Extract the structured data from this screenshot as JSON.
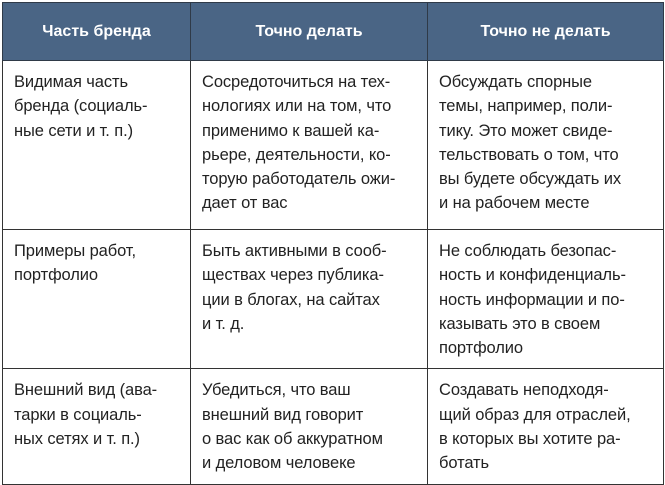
{
  "table": {
    "headers": [
      "Часть бренда",
      "Точно делать",
      "Точно не делать"
    ],
    "rows": [
      [
        [
          "Видимая часть",
          "бренда (социаль-",
          "ные сети и т. п.)"
        ],
        [
          "Сосредоточиться на тех-",
          "нологиях или на том, что",
          "применимо к вашей ка-",
          "рьере, деятельности, ко-",
          "торую работодатель ожи-",
          "дает от вас"
        ],
        [
          "Обсуждать спорные",
          "темы, например, поли-",
          "тику. Это может свиде-",
          "тельствовать о том, что",
          "вы будете обсуждать их",
          "и на рабочем месте"
        ]
      ],
      [
        [
          "Примеры работ,",
          "портфолио"
        ],
        [
          "Быть активными в сооб-",
          "ществах через публика-",
          "ции в блогах, на сайтах",
          "и т. д."
        ],
        [
          "Не соблюдать безопас-",
          "ность и конфиденциаль-",
          "ность информации и по-",
          "казывать это в своем",
          "портфолио"
        ]
      ],
      [
        [
          "Внешний вид (ава-",
          "тарки в социаль-",
          "ных сетях и т. п.)"
        ],
        [
          "Убедиться, что ваш",
          "внешний вид говорит",
          "о вас как об аккуратном",
          "и деловом человеке"
        ],
        [
          "Создавать неподходя-",
          "щий образ для отраслей,",
          "в которых вы хотите ра-",
          "ботать"
        ]
      ]
    ],
    "header_color": "#4a6585"
  }
}
